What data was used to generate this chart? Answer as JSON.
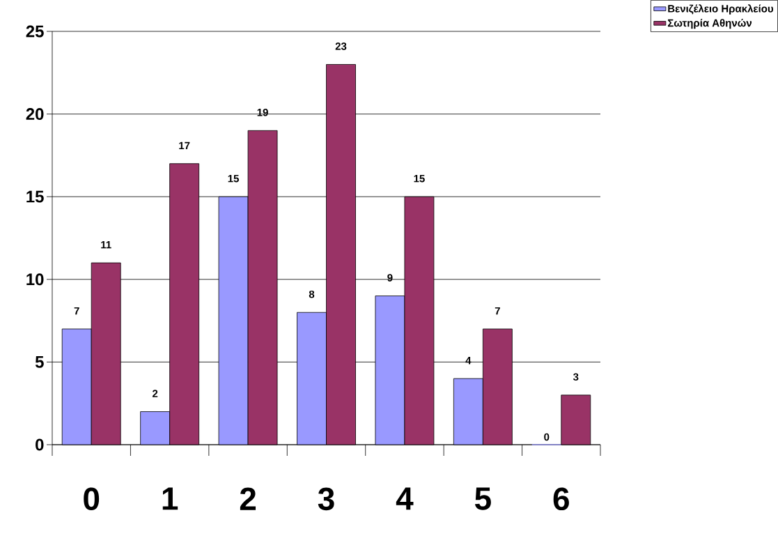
{
  "chart_data": {
    "type": "bar",
    "categories": [
      "0",
      "1",
      "2",
      "3",
      "4",
      "5",
      "6"
    ],
    "series": [
      {
        "name": "Βενιζέλειο Ηρακλείου",
        "color": "#9999ff",
        "values": [
          7,
          2,
          15,
          8,
          9,
          4,
          0
        ]
      },
      {
        "name": "Σωτηρία Αθηνών",
        "color": "#993366",
        "values": [
          11,
          17,
          19,
          23,
          15,
          7,
          3
        ]
      }
    ],
    "ylim": [
      0,
      25
    ],
    "yticks": [
      0,
      5,
      10,
      15,
      20,
      25
    ],
    "grid": "y",
    "legend": "top right",
    "data_labels": true
  }
}
